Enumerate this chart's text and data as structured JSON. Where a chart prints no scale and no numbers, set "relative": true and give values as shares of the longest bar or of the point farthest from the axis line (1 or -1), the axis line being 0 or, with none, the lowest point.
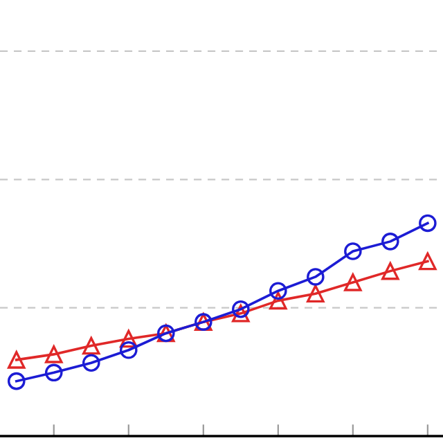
{
  "chart_data": {
    "type": "line",
    "relative": true,
    "categories": [
      null,
      null,
      null,
      null,
      null,
      null,
      null,
      null,
      null,
      null,
      null,
      null
    ],
    "series": [
      {
        "color": "#e02828",
        "marker": "triangle",
        "values": [
          0.358,
          0.384,
          0.424,
          0.457,
          0.483,
          0.536,
          0.576,
          0.636,
          0.669,
          0.722,
          0.775,
          0.821
        ]
      },
      {
        "color": "#1c1cd4",
        "marker": "circle",
        "values": [
          0.258,
          0.298,
          0.344,
          0.404,
          0.483,
          0.536,
          0.596,
          0.682,
          0.748,
          0.868,
          0.914,
          1.0
        ]
      }
    ],
    "ref_lines": [
      {
        "axis": "y",
        "value": 0.603,
        "color": "#c8c8c8",
        "line_style": "dashed"
      },
      {
        "axis": "y",
        "value": 1.205,
        "color": "#c8c8c8",
        "line_style": "dashed"
      },
      {
        "axis": "y",
        "value": 1.808,
        "color": "#c8c8c8",
        "line_style": "dashed"
      }
    ],
    "line_style": "solid",
    "legend": false
  }
}
